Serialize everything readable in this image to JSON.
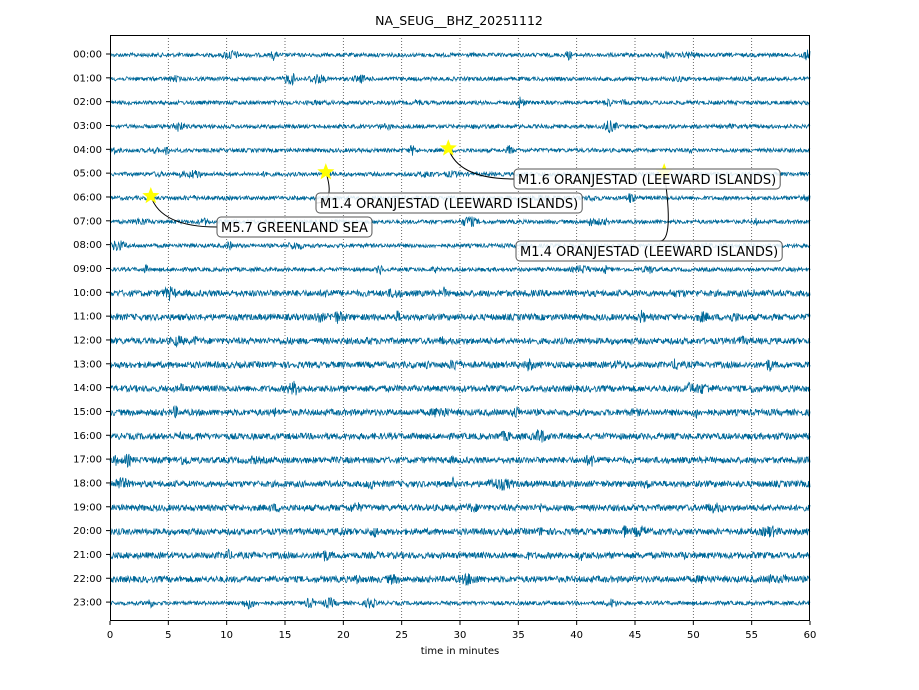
{
  "chart_data": {
    "type": "line",
    "title": "NA_SEUG__BHZ_20251112",
    "xlabel": "time in minutes",
    "ylabel": "",
    "xlim": [
      0,
      60
    ],
    "x_ticks": [
      "0",
      "5",
      "10",
      "15",
      "20",
      "25",
      "30",
      "35",
      "40",
      "45",
      "50",
      "55",
      "60"
    ],
    "y_tick_labels": [
      "00:00",
      "01:00",
      "02:00",
      "03:00",
      "04:00",
      "05:00",
      "06:00",
      "07:00",
      "08:00",
      "09:00",
      "10:00",
      "11:00",
      "12:00",
      "13:00",
      "14:00",
      "15:00",
      "16:00",
      "17:00",
      "18:00",
      "19:00",
      "20:00",
      "21:00",
      "22:00",
      "23:00"
    ],
    "grid": "vertical dotted",
    "trace_color": "#00699a",
    "marker_color": "#ffff00",
    "events": [
      {
        "label": "M5.7 GREENLAND SEA",
        "hour_row": "06:00",
        "minute": 3.5
      },
      {
        "label": "M1.4 ORANJESTAD (LEEWARD ISLANDS)",
        "hour_row": "05:00",
        "minute": 18.5
      },
      {
        "label": "M1.6 ORANJESTAD (LEEWARD ISLANDS)",
        "hour_row": "04:00",
        "minute": 29.0
      },
      {
        "label": "M1.4 ORANJESTAD (LEEWARD ISLANDS)",
        "hour_row": "05:00",
        "minute": 47.5
      }
    ]
  }
}
